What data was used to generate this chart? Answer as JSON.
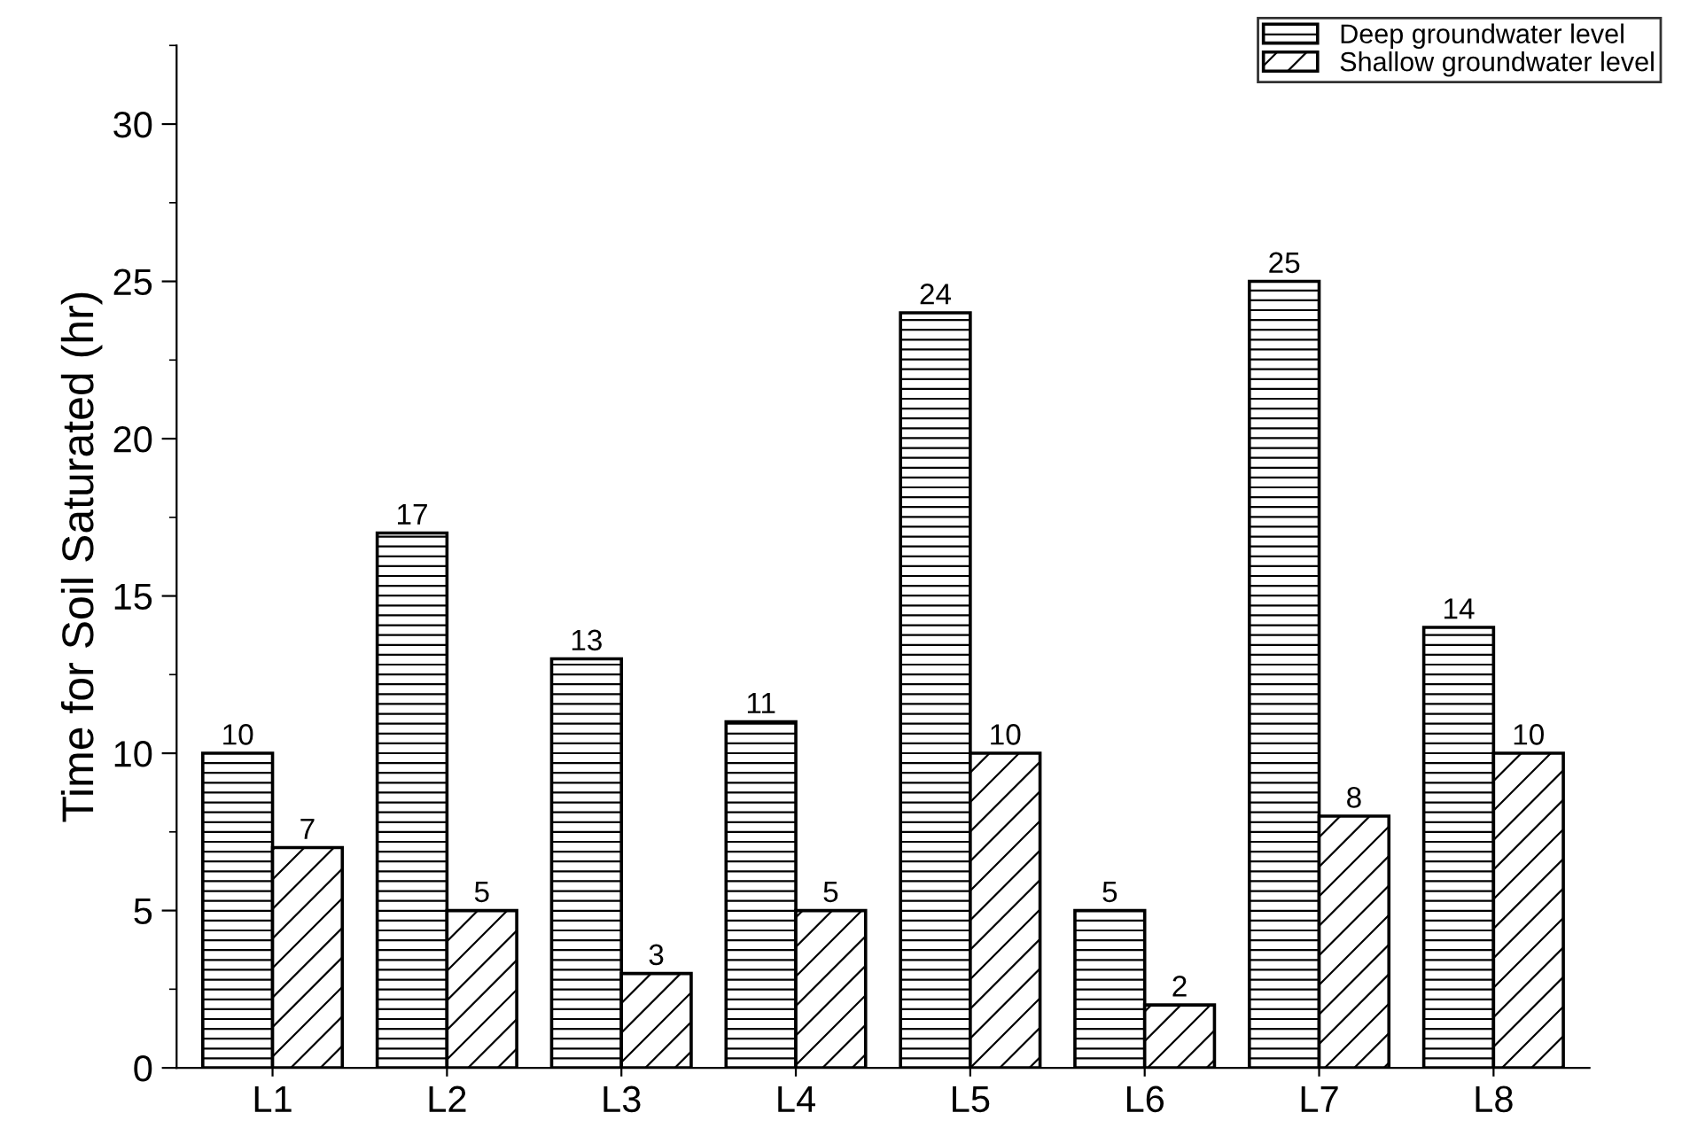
{
  "chart_data": {
    "type": "bar",
    "ylabel": "Time for Soil Saturated (hr)",
    "categories": [
      "L1",
      "L2",
      "L3",
      "L4",
      "L5",
      "L6",
      "L7",
      "L8"
    ],
    "series": [
      {
        "name": "Deep groundwater level",
        "color": "#000000",
        "values": [
          10,
          17,
          13,
          11,
          24,
          5,
          25,
          14
        ]
      },
      {
        "name": "Shallow groundwater level",
        "color": "#000000",
        "values": [
          7,
          5,
          3,
          5,
          10,
          2,
          8,
          10
        ]
      }
    ],
    "ylim": [
      0,
      32.5
    ],
    "yticks": [
      0,
      5,
      10,
      15,
      20,
      25,
      30
    ],
    "grid": false,
    "legend": "top right",
    "data_labels": true
  }
}
